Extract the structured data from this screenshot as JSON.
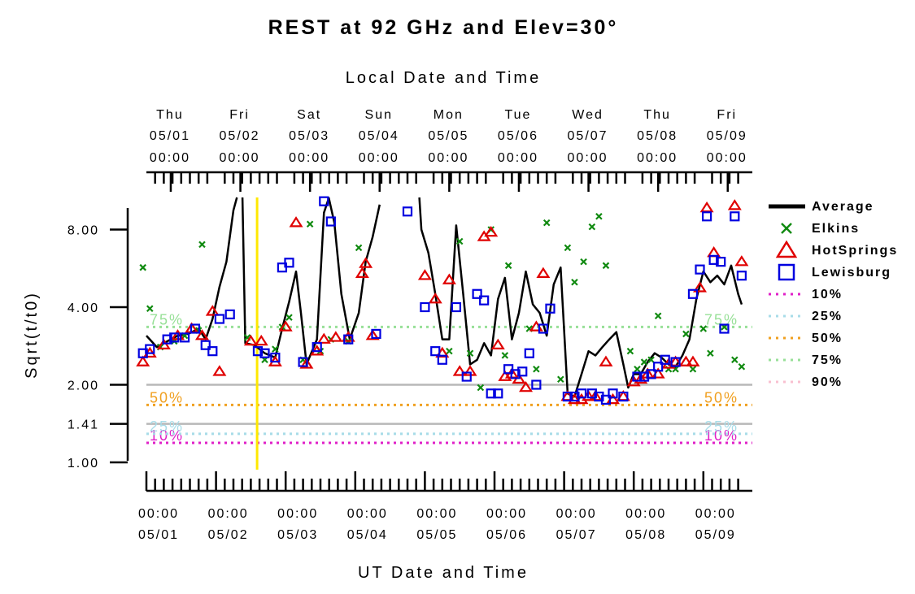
{
  "chart_data": {
    "type": "line",
    "title": "REST at 92 GHz and Elev=30°",
    "top_xlabel": "Local Date and Time",
    "xlabel": "UT Date and Time",
    "ylabel": "Sqrt(t/t0)",
    "y_scale": "log",
    "ylim": [
      1.0,
      11.0
    ],
    "y_ticks": [
      {
        "value": 1.0,
        "label": "1.00"
      },
      {
        "value": 1.41,
        "label": "1.41"
      },
      {
        "value": 2.0,
        "label": "2.00"
      },
      {
        "value": 4.0,
        "label": "4.00"
      },
      {
        "value": 8.0,
        "label": "8.00"
      }
    ],
    "x_unit": "days since 05/01 00:00 UT",
    "xlim": [
      0,
      8.55
    ],
    "bottom_ticks": [
      {
        "x": 0,
        "time": "00:00",
        "date": "05/01"
      },
      {
        "x": 1,
        "time": "00:00",
        "date": "05/02"
      },
      {
        "x": 2,
        "time": "00:00",
        "date": "05/03"
      },
      {
        "x": 3,
        "time": "00:00",
        "date": "05/04"
      },
      {
        "x": 4,
        "time": "00:00",
        "date": "05/05"
      },
      {
        "x": 5,
        "time": "00:00",
        "date": "05/06"
      },
      {
        "x": 6,
        "time": "00:00",
        "date": "05/07"
      },
      {
        "x": 7,
        "time": "00:00",
        "date": "05/08"
      },
      {
        "x": 8,
        "time": "00:00",
        "date": "05/09"
      }
    ],
    "top_ticks": [
      {
        "x": 0.35,
        "day": "Thu",
        "date": "05/01",
        "time": "00:00"
      },
      {
        "x": 1.35,
        "day": "Fri",
        "date": "05/02",
        "time": "00:00"
      },
      {
        "x": 2.35,
        "day": "Sat",
        "date": "05/03",
        "time": "00:00"
      },
      {
        "x": 3.35,
        "day": "Sun",
        "date": "05/04",
        "time": "00:00"
      },
      {
        "x": 4.35,
        "day": "Mon",
        "date": "05/05",
        "time": "00:00"
      },
      {
        "x": 5.35,
        "day": "Tue",
        "date": "05/06",
        "time": "00:00"
      },
      {
        "x": 6.35,
        "day": "Wed",
        "date": "05/07",
        "time": "00:00"
      },
      {
        "x": 7.35,
        "day": "Thu",
        "date": "05/08",
        "time": "00:00"
      },
      {
        "x": 8.35,
        "day": "Fri",
        "date": "05/09",
        "time": "00:00"
      }
    ],
    "gray_lines": [
      1.41,
      2.0
    ],
    "now_marker_x": 1.59,
    "percentiles": [
      {
        "name": "10%",
        "value": 1.19,
        "color": "#e020c8",
        "show_label": true
      },
      {
        "name": "25%",
        "value": 1.29,
        "color": "#a8dce8",
        "show_label": true
      },
      {
        "name": "50%",
        "value": 1.67,
        "color": "#f0a020",
        "show_label": true
      },
      {
        "name": "75%",
        "value": 3.35,
        "color": "#98e098",
        "show_label": true
      },
      {
        "name": "90%",
        "value": null,
        "color": "#f8c0d0",
        "show_label": false
      }
    ],
    "series": [
      {
        "name": "Average",
        "marker": "line",
        "color": "#000000",
        "segments": [
          [
            [
              0,
              3.1
            ],
            [
              0.15,
              2.8
            ],
            [
              0.3,
              2.95
            ],
            [
              0.45,
              3.1
            ],
            [
              0.6,
              3.15
            ],
            [
              0.75,
              3.3
            ],
            [
              0.85,
              3.0
            ],
            [
              0.95,
              3.6
            ],
            [
              1.05,
              4.8
            ],
            [
              1.15,
              6.0
            ],
            [
              1.25,
              9.5
            ],
            [
              1.3,
              11.0
            ]
          ],
          [
            [
              1.38,
              11.0
            ],
            [
              1.42,
              2.9
            ],
            [
              1.55,
              2.85
            ],
            [
              1.7,
              2.65
            ],
            [
              1.85,
              2.55
            ],
            [
              1.95,
              3.3
            ],
            [
              2.05,
              4.2
            ],
            [
              2.15,
              5.5
            ],
            [
              2.22,
              3.8
            ],
            [
              2.3,
              2.4
            ],
            [
              2.45,
              3.0
            ],
            [
              2.55,
              9.3
            ],
            [
              2.62,
              10.6
            ],
            [
              2.7,
              8.5
            ],
            [
              2.8,
              4.5
            ],
            [
              2.92,
              3.0
            ],
            [
              3.05,
              3.8
            ],
            [
              3.15,
              6.0
            ],
            [
              3.25,
              7.5
            ],
            [
              3.35,
              10.0
            ]
          ],
          [
            [
              3.92,
              11.0
            ],
            [
              3.95,
              8.0
            ],
            [
              4.05,
              6.5
            ],
            [
              4.15,
              4.5
            ],
            [
              4.25,
              3.0
            ],
            [
              4.35,
              3.0
            ],
            [
              4.45,
              8.3
            ],
            [
              4.55,
              4.5
            ],
            [
              4.65,
              2.4
            ],
            [
              4.75,
              2.5
            ],
            [
              4.85,
              2.9
            ],
            [
              4.95,
              2.6
            ],
            [
              5.05,
              4.3
            ],
            [
              5.15,
              5.2
            ],
            [
              5.25,
              3.0
            ],
            [
              5.35,
              3.8
            ],
            [
              5.45,
              5.5
            ],
            [
              5.55,
              4.1
            ],
            [
              5.65,
              3.8
            ],
            [
              5.75,
              3.1
            ],
            [
              5.85,
              4.9
            ],
            [
              5.95,
              5.7
            ],
            [
              6.05,
              1.85
            ],
            [
              6.15,
              1.8
            ],
            [
              6.25,
              2.2
            ],
            [
              6.35,
              2.7
            ],
            [
              6.45,
              2.6
            ],
            [
              6.55,
              2.8
            ],
            [
              6.65,
              3.0
            ],
            [
              6.75,
              3.2
            ],
            [
              6.85,
              2.4
            ],
            [
              6.92,
              1.95
            ],
            [
              7.0,
              2.2
            ],
            [
              7.1,
              2.2
            ],
            [
              7.2,
              2.45
            ],
            [
              7.3,
              2.65
            ],
            [
              7.4,
              2.55
            ],
            [
              7.5,
              2.4
            ],
            [
              7.6,
              2.35
            ],
            [
              7.7,
              2.6
            ],
            [
              7.8,
              3.0
            ],
            [
              7.9,
              4.3
            ],
            [
              8.0,
              5.5
            ],
            [
              8.1,
              5.0
            ],
            [
              8.2,
              5.3
            ],
            [
              8.3,
              4.9
            ],
            [
              8.4,
              5.8
            ],
            [
              8.5,
              4.5
            ],
            [
              8.55,
              4.1
            ]
          ]
        ]
      },
      {
        "name": "Elkins",
        "marker": "x",
        "color": "#108a10",
        "points": [
          [
            -0.05,
            5.7
          ],
          [
            0.05,
            3.95
          ],
          [
            0.2,
            2.8
          ],
          [
            0.4,
            2.95
          ],
          [
            0.55,
            3.1
          ],
          [
            0.75,
            3.25
          ],
          [
            0.8,
            7.0
          ],
          [
            1.45,
            3.05
          ],
          [
            1.7,
            2.5
          ],
          [
            1.85,
            2.75
          ],
          [
            1.95,
            3.35
          ],
          [
            2.05,
            3.65
          ],
          [
            2.25,
            2.5
          ],
          [
            2.35,
            8.4
          ],
          [
            2.5,
            2.7
          ],
          [
            2.65,
            3.0
          ],
          [
            2.9,
            2.95
          ],
          [
            3.05,
            6.8
          ],
          [
            4.35,
            2.7
          ],
          [
            4.5,
            7.2
          ],
          [
            4.65,
            2.65
          ],
          [
            4.8,
            1.95
          ],
          [
            4.95,
            8.0
          ],
          [
            5.15,
            2.6
          ],
          [
            5.2,
            5.8
          ],
          [
            5.5,
            3.3
          ],
          [
            5.6,
            2.3
          ],
          [
            5.75,
            8.5
          ],
          [
            5.95,
            2.1
          ],
          [
            6.05,
            6.8
          ],
          [
            6.15,
            5.0
          ],
          [
            6.28,
            6.0
          ],
          [
            6.4,
            8.2
          ],
          [
            6.5,
            9.0
          ],
          [
            6.6,
            5.8
          ],
          [
            6.95,
            2.7
          ],
          [
            7.05,
            2.3
          ],
          [
            7.15,
            2.45
          ],
          [
            7.25,
            2.5
          ],
          [
            7.35,
            3.7
          ],
          [
            7.5,
            2.3
          ],
          [
            7.6,
            2.3
          ],
          [
            7.75,
            3.15
          ],
          [
            7.85,
            2.3
          ],
          [
            8.0,
            3.3
          ],
          [
            8.1,
            2.65
          ],
          [
            8.3,
            3.35
          ],
          [
            8.45,
            2.5
          ],
          [
            8.55,
            2.35
          ]
        ]
      },
      {
        "name": "HotSprings",
        "marker": "triangle",
        "color": "#e00000",
        "points": [
          [
            -0.05,
            2.45
          ],
          [
            0.05,
            2.65
          ],
          [
            0.25,
            2.85
          ],
          [
            0.45,
            3.1
          ],
          [
            0.65,
            3.3
          ],
          [
            0.8,
            3.1
          ],
          [
            0.95,
            3.85
          ],
          [
            1.05,
            2.25
          ],
          [
            1.5,
            2.95
          ],
          [
            1.65,
            2.95
          ],
          [
            1.85,
            2.45
          ],
          [
            2.0,
            3.35
          ],
          [
            2.15,
            8.5
          ],
          [
            2.3,
            2.4
          ],
          [
            2.45,
            2.7
          ],
          [
            2.55,
            3.0
          ],
          [
            2.72,
            3.05
          ],
          [
            2.9,
            3.05
          ],
          [
            3.1,
            5.4
          ],
          [
            3.15,
            5.9
          ],
          [
            3.25,
            3.1
          ],
          [
            4.0,
            5.3
          ],
          [
            4.15,
            4.3
          ],
          [
            4.25,
            2.65
          ],
          [
            4.35,
            5.1
          ],
          [
            4.5,
            2.25
          ],
          [
            4.65,
            2.25
          ],
          [
            4.85,
            7.5
          ],
          [
            4.95,
            7.8
          ],
          [
            5.05,
            2.85
          ],
          [
            5.15,
            2.15
          ],
          [
            5.25,
            2.2
          ],
          [
            5.35,
            2.1
          ],
          [
            5.45,
            1.95
          ],
          [
            5.6,
            3.35
          ],
          [
            5.7,
            5.4
          ],
          [
            6.05,
            1.8
          ],
          [
            6.15,
            1.75
          ],
          [
            6.25,
            1.75
          ],
          [
            6.35,
            1.8
          ],
          [
            6.45,
            1.8
          ],
          [
            6.6,
            2.45
          ],
          [
            6.7,
            1.75
          ],
          [
            6.85,
            1.8
          ],
          [
            7.0,
            2.05
          ],
          [
            7.1,
            2.1
          ],
          [
            7.2,
            2.2
          ],
          [
            7.35,
            2.2
          ],
          [
            7.5,
            2.4
          ],
          [
            7.6,
            2.45
          ],
          [
            7.75,
            2.45
          ],
          [
            7.85,
            2.45
          ],
          [
            7.95,
            4.75
          ],
          [
            8.05,
            9.7
          ],
          [
            8.15,
            6.5
          ],
          [
            8.45,
            9.9
          ],
          [
            8.55,
            6.0
          ]
        ]
      },
      {
        "name": "Lewisburg",
        "marker": "square",
        "color": "#0000e0",
        "points": [
          [
            -0.05,
            2.65
          ],
          [
            0.05,
            2.75
          ],
          [
            0.3,
            3.0
          ],
          [
            0.4,
            3.05
          ],
          [
            0.55,
            3.05
          ],
          [
            0.7,
            3.3
          ],
          [
            0.85,
            2.85
          ],
          [
            0.95,
            2.7
          ],
          [
            1.05,
            3.6
          ],
          [
            1.2,
            3.75
          ],
          [
            1.6,
            2.7
          ],
          [
            1.7,
            2.65
          ],
          [
            1.85,
            2.55
          ],
          [
            1.95,
            5.7
          ],
          [
            2.05,
            5.95
          ],
          [
            2.25,
            2.45
          ],
          [
            2.45,
            2.8
          ],
          [
            2.55,
            10.3
          ],
          [
            2.65,
            8.6
          ],
          [
            2.9,
            3.0
          ],
          [
            3.3,
            3.15
          ],
          [
            3.75,
            9.4
          ],
          [
            4.0,
            4.0
          ],
          [
            4.15,
            2.7
          ],
          [
            4.25,
            2.5
          ],
          [
            4.45,
            4.0
          ],
          [
            4.6,
            2.15
          ],
          [
            4.75,
            4.5
          ],
          [
            4.85,
            4.25
          ],
          [
            4.95,
            1.85
          ],
          [
            5.05,
            1.85
          ],
          [
            5.2,
            2.3
          ],
          [
            5.3,
            2.2
          ],
          [
            5.4,
            2.25
          ],
          [
            5.5,
            2.65
          ],
          [
            5.6,
            2.0
          ],
          [
            5.7,
            3.3
          ],
          [
            5.8,
            3.95
          ],
          [
            6.05,
            1.8
          ],
          [
            6.15,
            1.8
          ],
          [
            6.25,
            1.85
          ],
          [
            6.4,
            1.85
          ],
          [
            6.5,
            1.8
          ],
          [
            6.6,
            1.75
          ],
          [
            6.7,
            1.85
          ],
          [
            6.85,
            1.8
          ],
          [
            7.05,
            2.15
          ],
          [
            7.15,
            2.15
          ],
          [
            7.25,
            2.2
          ],
          [
            7.35,
            2.35
          ],
          [
            7.45,
            2.5
          ],
          [
            7.6,
            2.45
          ],
          [
            7.85,
            4.5
          ],
          [
            7.95,
            5.6
          ],
          [
            8.05,
            9.0
          ],
          [
            8.15,
            6.1
          ],
          [
            8.25,
            6.0
          ],
          [
            8.3,
            3.3
          ],
          [
            8.45,
            9.0
          ],
          [
            8.55,
            5.3
          ]
        ]
      }
    ],
    "legend_position": "right"
  }
}
